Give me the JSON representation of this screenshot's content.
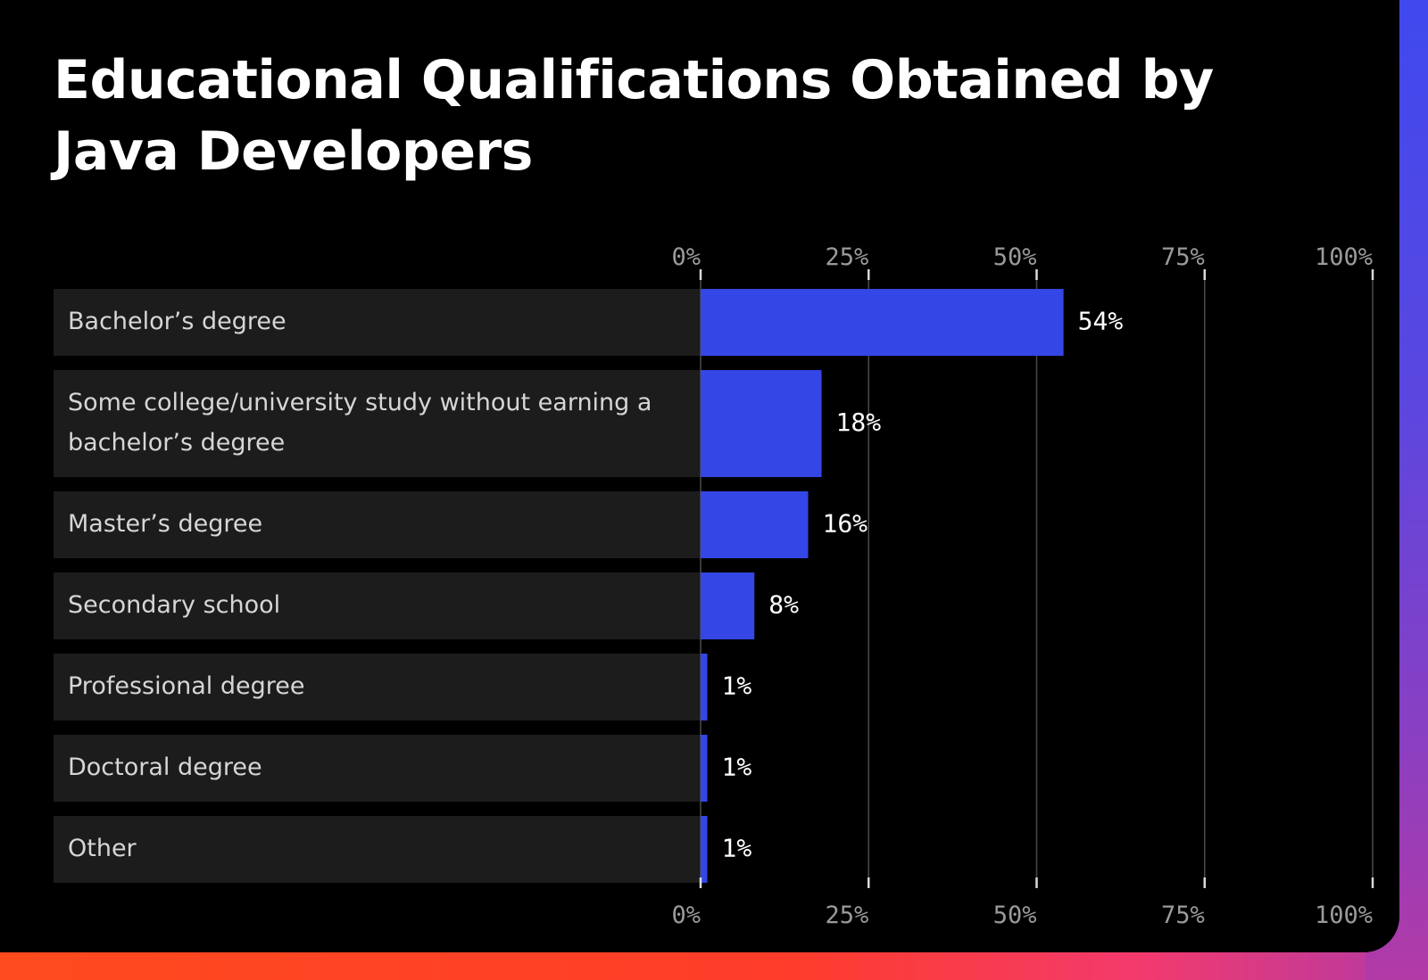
{
  "colors": {
    "bar": "#3546e6",
    "row_background": "#1c1c1c",
    "gridline": "#4a4a4a",
    "tick_mark": "#d9d9d9",
    "panel": "#000000"
  },
  "chart_data": {
    "type": "bar",
    "orientation": "horizontal",
    "title": "Educational Qualifications Obtained by Java Developers",
    "categories": [
      [
        "Bachelor’s degree"
      ],
      [
        "Some college/university study without earning a",
        "bachelor’s degree"
      ],
      [
        "Master’s degree"
      ],
      [
        "Secondary school"
      ],
      [
        "Professional degree"
      ],
      [
        "Doctoral degree"
      ],
      [
        "Other"
      ]
    ],
    "values": [
      54,
      18,
      16,
      8,
      1,
      1,
      1
    ],
    "value_labels": [
      "54%",
      "18%",
      "16%",
      "8%",
      "1%",
      "1%",
      "1%"
    ],
    "xlim": [
      0,
      100
    ],
    "ticks": [
      0,
      25,
      50,
      75,
      100
    ],
    "tick_labels": [
      "0%",
      "25%",
      "50%",
      "75%",
      "100%"
    ],
    "axis_labels_position": "top-and-bottom",
    "grid": true,
    "legend": "none"
  }
}
